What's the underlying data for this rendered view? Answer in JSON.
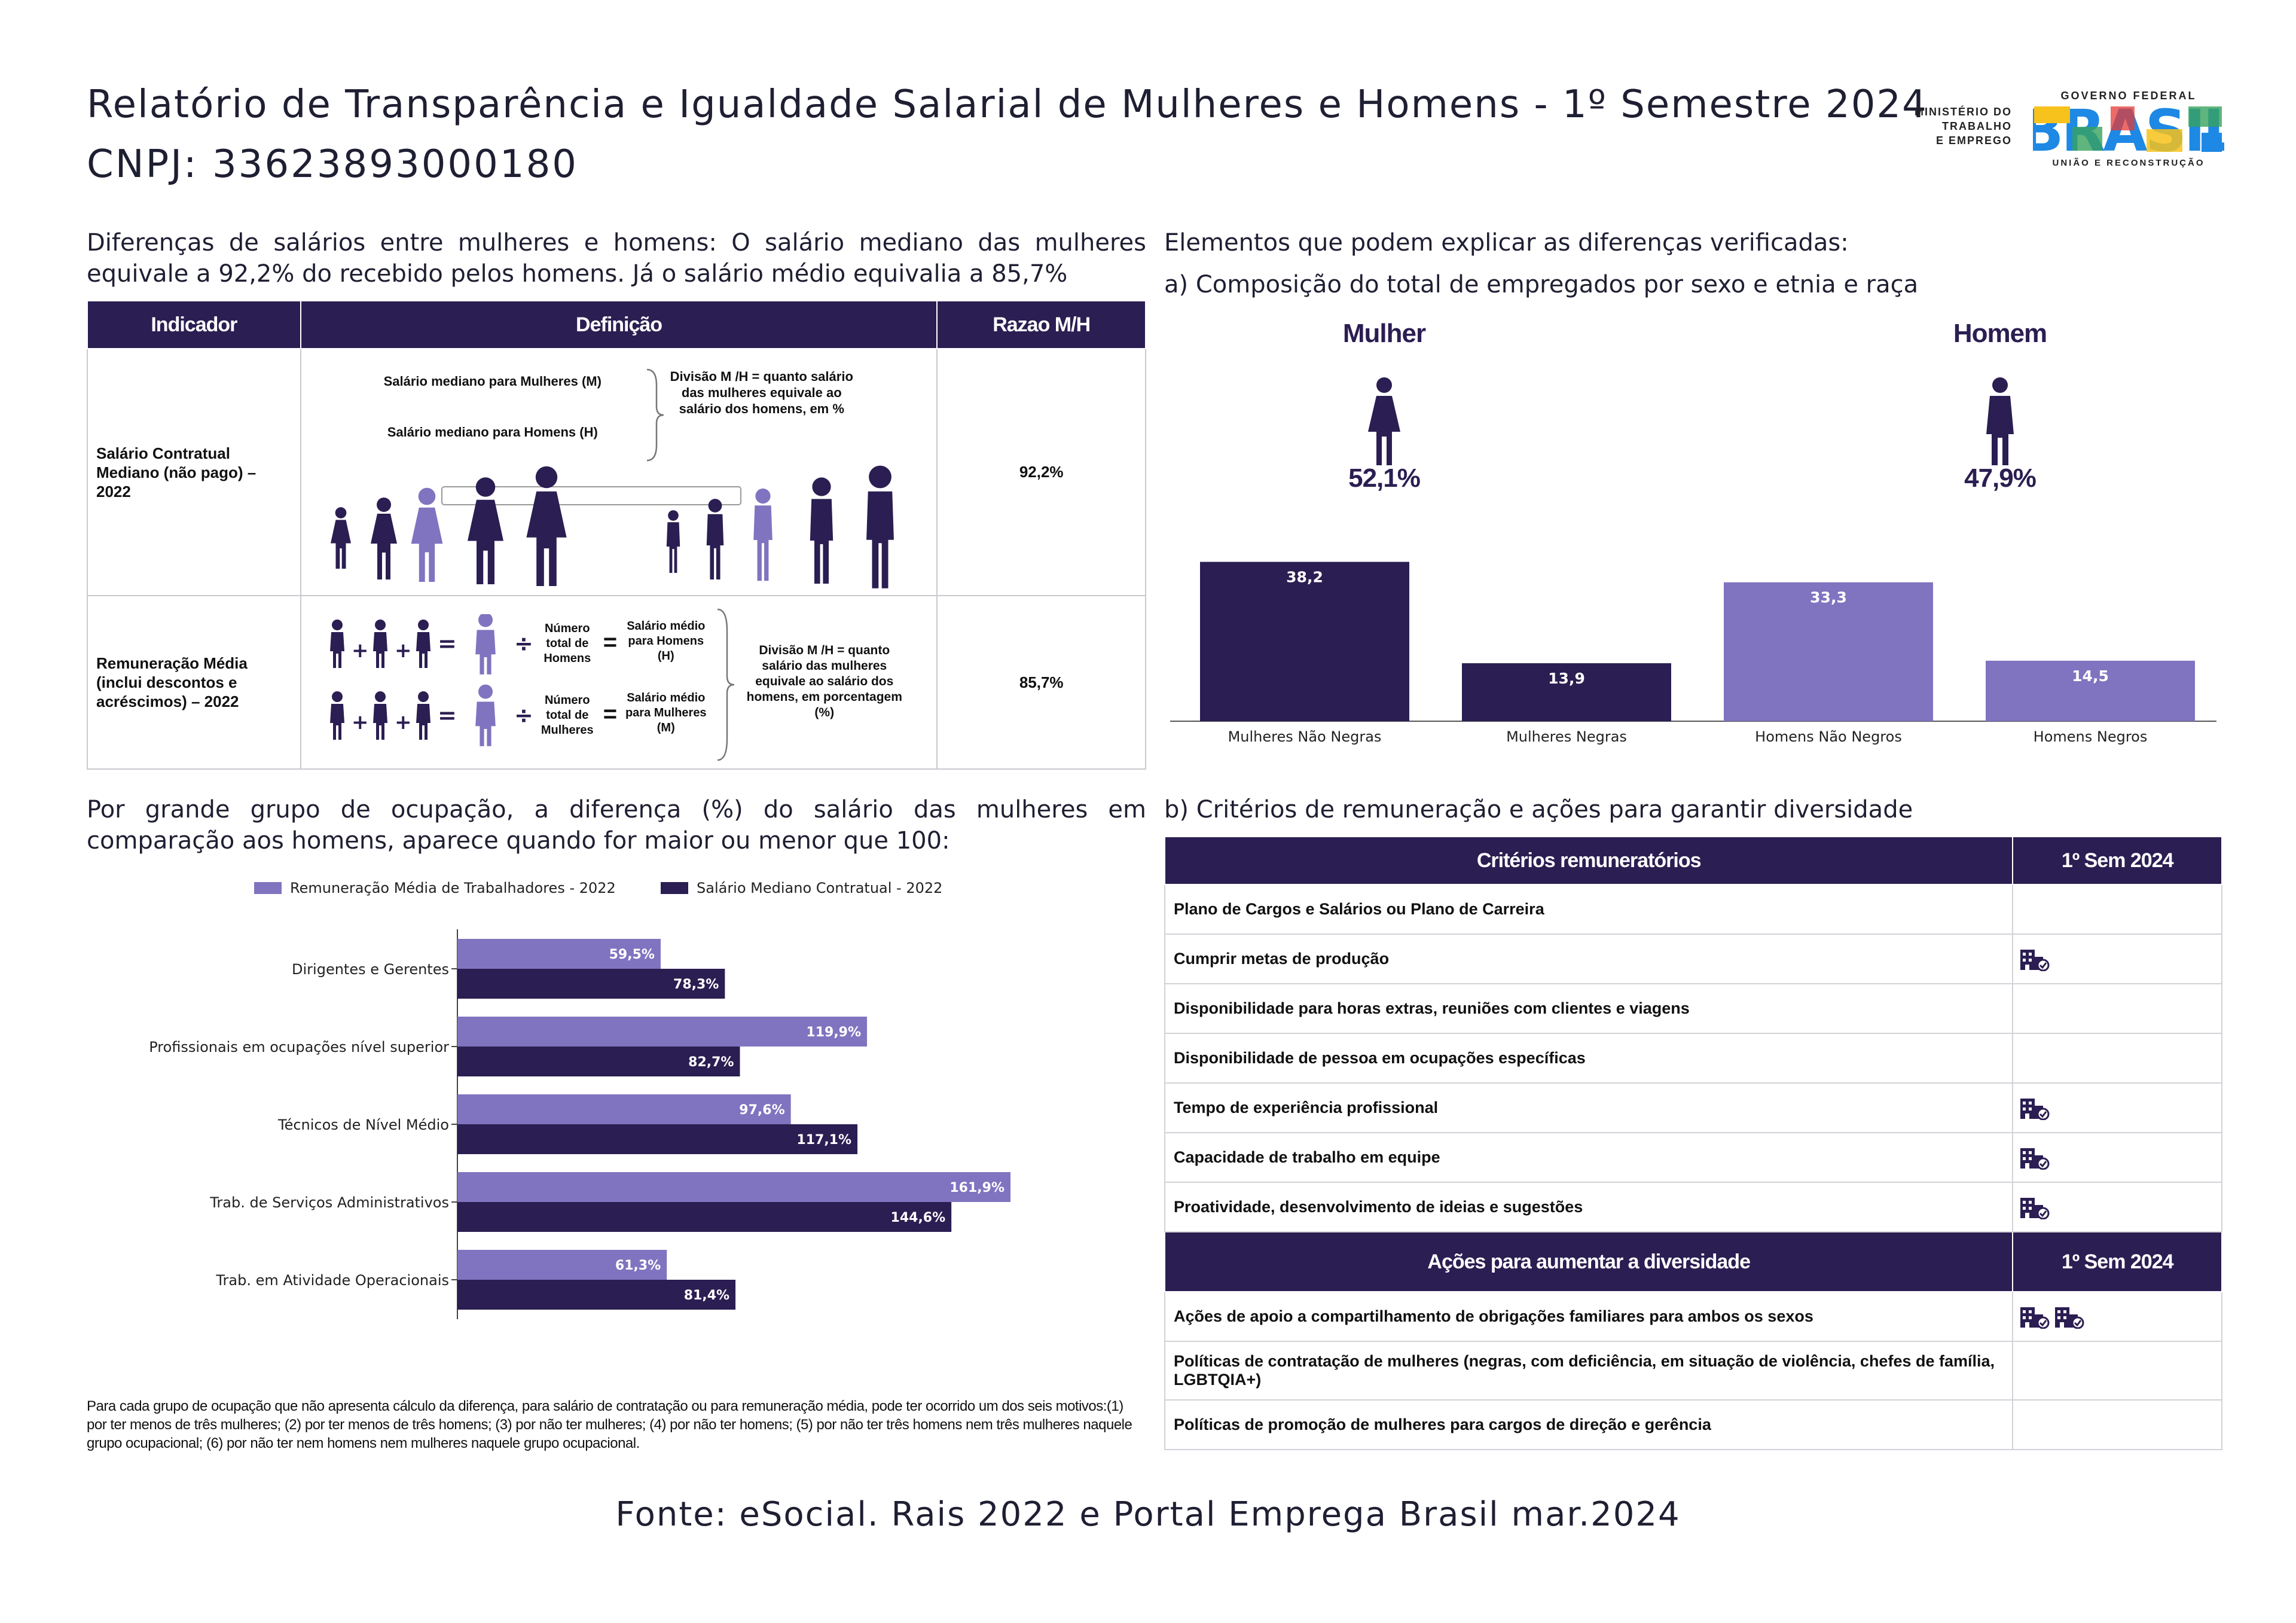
{
  "header": {
    "title": "Relatório de Transparência e Igualdade Salarial de Mulheres e Homens - 1º Semestre 2024",
    "cnpj": "CNPJ: 33623893000180",
    "ministry": [
      "MINISTÉRIO DO",
      "TRABALHO",
      "E EMPREGO"
    ],
    "gov_top": "GOVERNO FEDERAL",
    "gov_word": "BRASIL",
    "gov_bottom": "UNIÃO E RECONSTRUÇÃO"
  },
  "intro": "Diferenças de salários entre mulheres e homens: O salário mediano das mulheres equivale a 92,2% do recebido pelos homens. Já o salário médio equivalia a 85,7%",
  "indicator_table": {
    "headers": [
      "Indicador",
      "Definição",
      "Razao M/H"
    ],
    "rows": [
      {
        "indicator": "Salário Contratual Mediano (não pago) – 2022",
        "ratio": "92,2%",
        "def_women": "Salário mediano para Mulheres (M)",
        "def_men": "Salário mediano para Homens (H)",
        "def_division": "Divisão M /H = quanto salário das mulheres equivale ao salário dos homens, em %"
      },
      {
        "indicator": "Remuneração Média (inclui descontos e acréscimos) – 2022",
        "ratio": "85,7%",
        "total_men": "Número total de Homens",
        "avg_men": "Salário médio para Homens (H)",
        "total_women": "Número total de Mulheres",
        "avg_women": "Salário médio para Mulheres (M)",
        "def_division": "Divisão M /H = quanto salário das mulheres equivale ao salário dos homens, em porcentagem (%)"
      }
    ]
  },
  "occupation_intro": "Por grande grupo de ocupação, a diferença (%) do salário das mulheres em comparação aos homens, aparece quando for maior ou menor que 100:",
  "note": "Para cada grupo de ocupação que não apresenta cálculo da diferença, para salário de contratação ou para remuneração média, pode ter ocorrido um dos seis motivos:(1) por ter menos de três mulheres; (2) por ter menos de três homens; (3) por não ter mulheres; (4) por não ter homens; (5) por não ter três homens nem três mulheres naquele grupo ocupacional; (6) por não ter nem homens nem mulheres naquele grupo ocupacional.",
  "right": {
    "heading": "Elementos que podem explicar as diferenças verificadas:",
    "sub_a": "a) Composição do total de empregados por sexo e etnia e raça",
    "mulher_label": "Mulher",
    "mulher_pct": "52,1%",
    "homem_label": "Homem",
    "homem_pct": "47,9%",
    "sub_b": "b) Critérios de remuneração e ações para garantir diversidade"
  },
  "criteria_table": {
    "header": [
      "Critérios remuneratórios",
      "1º Sem 2024"
    ],
    "rows": [
      {
        "label": "Plano de Cargos e Salários ou Plano de Carreira",
        "icons": 0
      },
      {
        "label": "Cumprir metas de produção",
        "icons": 1
      },
      {
        "label": "Disponibilidade para horas extras, reuniões com clientes e viagens",
        "icons": 0
      },
      {
        "label": "Disponibilidade de pessoa em ocupações específicas",
        "icons": 0
      },
      {
        "label": "Tempo de experiência profissional",
        "icons": 1
      },
      {
        "label": "Capacidade de trabalho em equipe",
        "icons": 1
      },
      {
        "label": "Proatividade, desenvolvimento de ideias e sugestões",
        "icons": 1
      }
    ],
    "header2": [
      "Ações para aumentar a diversidade",
      "1º Sem 2024"
    ],
    "rows2": [
      {
        "label": "Ações de apoio a compartilhamento de obrigações familiares para ambos os sexos",
        "icons": 2
      },
      {
        "label": "Políticas de contratação de mulheres (negras, com deficiência, em situação de violência, chefes de família, LGBTQIA+)",
        "icons": 0
      },
      {
        "label": "Políticas de promoção de mulheres para cargos de direção e gerência",
        "icons": 0
      }
    ]
  },
  "footer": "Fonte: eSocial. Rais 2022 e Portal Emprega Brasil mar.2024",
  "colors": {
    "dark": "#2b1e52",
    "light": "#8074c0",
    "axis": "#444"
  },
  "chart_data": [
    {
      "type": "bar",
      "categories": [
        "Mulheres Não Negras",
        "Mulheres Negras",
        "Homens Não Negros",
        "Homens Negros"
      ],
      "values": [
        38.2,
        13.9,
        33.3,
        14.5
      ],
      "labels": [
        "38,2",
        "13,9",
        "33,3",
        "14,5"
      ],
      "bar_colors": [
        "#2b1e52",
        "#2b1e52",
        "#8074c0",
        "#8074c0"
      ],
      "ylim": [
        0,
        40
      ]
    },
    {
      "type": "bar",
      "orientation": "horizontal",
      "categories": [
        "Dirigentes e Gerentes",
        "Profissionais em ocupações nível superior",
        "Técnicos de Nível Médio",
        "Trab. de Serviços Administrativos",
        "Trab. em Atividade Operacionais"
      ],
      "series": [
        {
          "name": "Remuneração Média de Trabalhadores - 2022",
          "color": "#8074c0",
          "values": [
            59.5,
            119.9,
            97.6,
            161.9,
            61.3
          ],
          "labels": [
            "59,5%",
            "119,9%",
            "97,6%",
            "161,9%",
            "61,3%"
          ]
        },
        {
          "name": "Salário Mediano Contratual - 2022",
          "color": "#2b1e52",
          "values": [
            78.3,
            82.7,
            117.1,
            144.6,
            81.4
          ],
          "labels": [
            "78,3%",
            "82,7%",
            "117,1%",
            "144,6%",
            "81,4%"
          ]
        }
      ],
      "xlim": [
        0,
        170
      ],
      "legend": "top"
    }
  ]
}
